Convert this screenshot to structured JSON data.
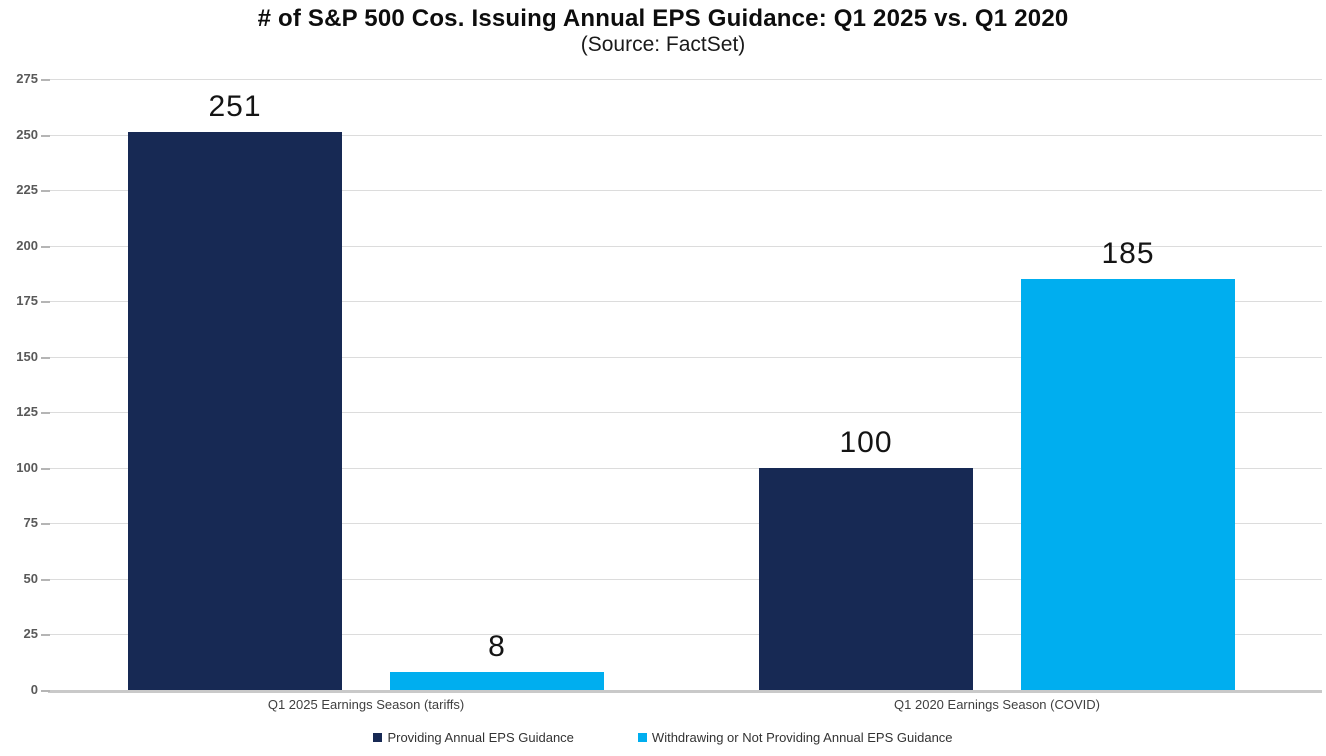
{
  "page": {
    "background": "#ffffff"
  },
  "chart_data": {
    "type": "bar",
    "title": "# of S&P 500 Cos. Issuing Annual EPS Guidance: Q1 2025 vs. Q1 2020",
    "subtitle": "(Source: FactSet)",
    "categories": [
      "Q1 2025 Earnings Season (tariffs)",
      "Q1 2020 Earnings Season (COVID)"
    ],
    "series": [
      {
        "name": "Providing Annual EPS Guidance",
        "color": "#172954",
        "values": [
          251,
          100
        ]
      },
      {
        "name": "Withdrawing or Not Providing Annual EPS Guidance",
        "color": "#00AEEF",
        "values": [
          8,
          185
        ]
      }
    ],
    "data_labels": [
      "251",
      "8",
      "100",
      "185"
    ],
    "ylim": [
      0,
      275
    ],
    "ytick_step": 25,
    "yticks": [
      0,
      25,
      50,
      75,
      100,
      125,
      150,
      175,
      200,
      225,
      250,
      275
    ],
    "grid": true,
    "gridline_color": "#dcdcdc",
    "axis_line_color": "#c9c9c9",
    "legend_position": "bottom"
  }
}
